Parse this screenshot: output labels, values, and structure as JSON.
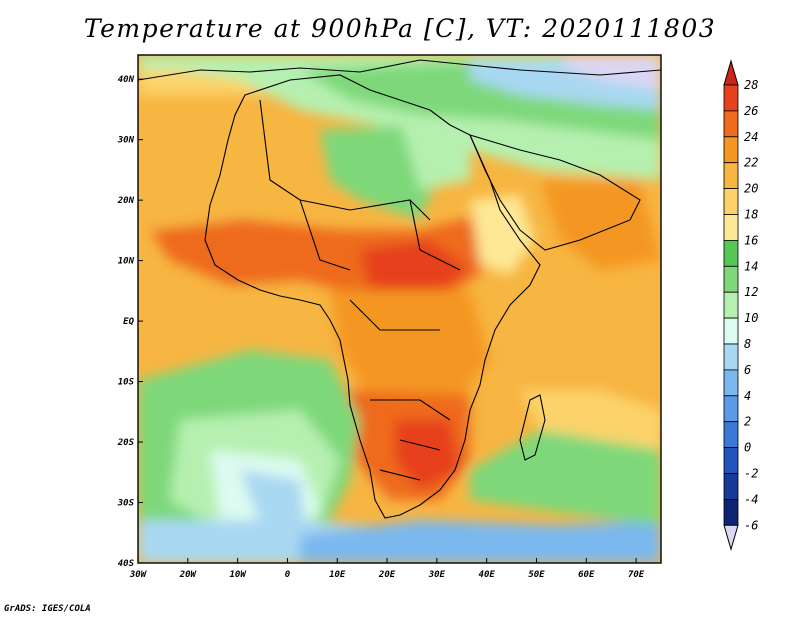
{
  "title": "Temperature at 900hPa [C], VT: 2020111803",
  "credit": "GrADS: IGES/COLA",
  "map": {
    "lon_ticks": [
      "30W",
      "20W",
      "10W",
      "0",
      "10E",
      "20E",
      "30E",
      "40E",
      "50E",
      "60E",
      "70E"
    ],
    "lat_ticks": [
      "40N",
      "30N",
      "20N",
      "10N",
      "EQ",
      "10S",
      "20S",
      "30S",
      "40S"
    ],
    "lon_range": [
      -30,
      75
    ],
    "lat_range": [
      -40,
      44
    ]
  },
  "colorbar": {
    "labels": [
      "28",
      "26",
      "24",
      "22",
      "20",
      "18",
      "16",
      "14",
      "12",
      "10",
      "8",
      "6",
      "4",
      "2",
      "0",
      "-2",
      "-4",
      "-6"
    ],
    "colors": [
      "#e6401d",
      "#ee6a1d",
      "#f49723",
      "#f7b542",
      "#fbd36a",
      "#fde895",
      "#56c855",
      "#7ed87a",
      "#b6f0b0",
      "#ddfbf0",
      "#a8d8f2",
      "#7ab8ee",
      "#5a9ae6",
      "#3a7ad6",
      "#2255bc",
      "#173a96",
      "#0e2470"
    ],
    "top_triangle_color": "#cf2413",
    "bottom_triangle_color": "#dcd6f4"
  },
  "colors": {
    "ocean_warm": "#fbd36a",
    "ocean_cool": "#7ed87a"
  }
}
